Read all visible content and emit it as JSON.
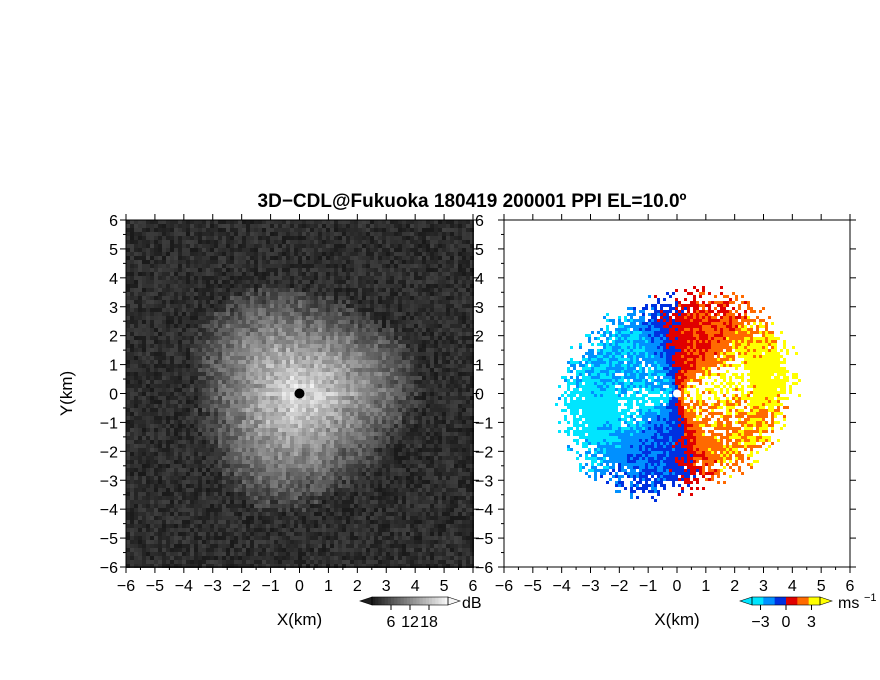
{
  "chart_data": [
    {
      "type": "heatmap",
      "panel": "reflectivity",
      "title": "3D−CDL@Fukuoka 180419 200001 PPI EL=10.0º",
      "xlabel": "X(km)",
      "ylabel": "Y(km)",
      "xlim": [
        -6,
        6
      ],
      "ylim": [
        -6,
        6
      ],
      "x_ticks": [
        "−6",
        "−5",
        "−4",
        "−3",
        "−2",
        "−1",
        "0",
        "1",
        "2",
        "3",
        "4",
        "5",
        "6"
      ],
      "y_ticks": [
        "−6",
        "−5",
        "−4",
        "−3",
        "−2",
        "−1",
        "0",
        "1",
        "2",
        "3",
        "4",
        "5",
        "6"
      ],
      "echo_radius_km": 3.8,
      "colorbar": {
        "unit": "dB",
        "ticks": [
          6,
          12,
          18
        ],
        "tick_labels": [
          "6",
          "12",
          "18"
        ],
        "range": [
          0,
          24
        ],
        "colors": "gray"
      }
    },
    {
      "type": "heatmap",
      "panel": "radial-velocity",
      "xlabel": "X(km)",
      "xlim": [
        -6,
        6
      ],
      "ylim": [
        -6,
        6
      ],
      "x_ticks": [
        "−6",
        "−5",
        "−4",
        "−3",
        "−2",
        "−1",
        "0",
        "1",
        "2",
        "3",
        "4",
        "5",
        "6"
      ],
      "y_ticks": [
        "−6",
        "−5",
        "−4",
        "−3",
        "−2",
        "−1",
        "0",
        "1",
        "2",
        "3",
        "4",
        "5",
        "6"
      ],
      "echo_radius_km": 3.7,
      "colorbar": {
        "unit": "ms",
        "unit_exponent": "−1",
        "ticks": [
          -3,
          0,
          3
        ],
        "tick_labels": [
          "−3",
          "0",
          "3"
        ],
        "range": [
          -4,
          4
        ],
        "colors": [
          "#00e5ff",
          "#0090ff",
          "#0030e0",
          "#e00000",
          "#ff6a00",
          "#ffff00"
        ]
      }
    }
  ]
}
